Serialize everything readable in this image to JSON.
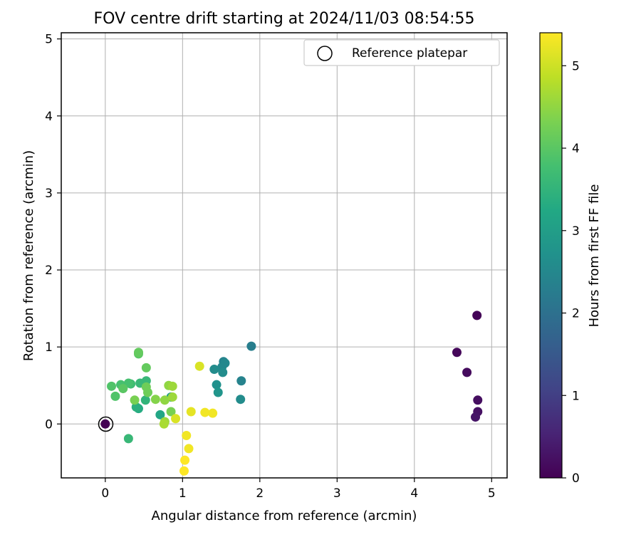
{
  "chart_data": {
    "type": "scatter",
    "title": "FOV centre drift starting at 2024/11/03 08:54:55",
    "xlabel": "Angular distance from reference (arcmin)",
    "ylabel": "Rotation from reference (arcmin)",
    "xlim": [
      -0.57,
      5.2
    ],
    "ylim": [
      -0.7,
      5.08
    ],
    "xticks": [
      0,
      1,
      2,
      3,
      4,
      5
    ],
    "yticks": [
      0,
      1,
      2,
      3,
      4,
      5
    ],
    "grid": true,
    "legend": {
      "position": "top-right",
      "entries": [
        "Reference platepar"
      ]
    },
    "reference_point": {
      "x": 0,
      "y": 0,
      "label": "Reference platepar"
    },
    "colorbar": {
      "label": "Hours from first FF file",
      "colormap": "viridis",
      "range": [
        0,
        5.4
      ],
      "ticks": [
        0,
        1,
        2,
        3,
        4,
        5
      ]
    },
    "points": [
      {
        "x": 4.81,
        "y": 1.41,
        "c": 0.05
      },
      {
        "x": 4.55,
        "y": 0.93,
        "c": 0.1
      },
      {
        "x": 4.68,
        "y": 0.67,
        "c": 0.15
      },
      {
        "x": 4.82,
        "y": 0.31,
        "c": 0.2
      },
      {
        "x": 4.82,
        "y": 0.16,
        "c": 0.25
      },
      {
        "x": 4.79,
        "y": 0.09,
        "c": 0.3
      },
      {
        "x": 1.89,
        "y": 1.01,
        "c": 2.3
      },
      {
        "x": 1.53,
        "y": 0.81,
        "c": 2.4
      },
      {
        "x": 1.55,
        "y": 0.79,
        "c": 2.5
      },
      {
        "x": 1.51,
        "y": 0.74,
        "c": 2.5
      },
      {
        "x": 1.41,
        "y": 0.71,
        "c": 2.6
      },
      {
        "x": 1.52,
        "y": 0.67,
        "c": 2.6
      },
      {
        "x": 1.76,
        "y": 0.56,
        "c": 2.4
      },
      {
        "x": 1.44,
        "y": 0.51,
        "c": 2.7
      },
      {
        "x": 1.46,
        "y": 0.41,
        "c": 2.8
      },
      {
        "x": 1.75,
        "y": 0.32,
        "c": 2.6
      },
      {
        "x": 0.85,
        "y": 0.35,
        "c": 3.0
      },
      {
        "x": 0.71,
        "y": 0.12,
        "c": 3.2
      },
      {
        "x": 0.43,
        "y": 0.2,
        "c": 3.3
      },
      {
        "x": 0.4,
        "y": 0.22,
        "c": 3.4
      },
      {
        "x": 0.3,
        "y": -0.19,
        "c": 3.6
      },
      {
        "x": 0.52,
        "y": 0.31,
        "c": 3.5
      },
      {
        "x": 0.53,
        "y": 0.56,
        "c": 3.6
      },
      {
        "x": 0.45,
        "y": 0.53,
        "c": 3.6
      },
      {
        "x": 0.33,
        "y": 0.52,
        "c": 3.7
      },
      {
        "x": 0.3,
        "y": 0.53,
        "c": 3.8
      },
      {
        "x": 0.2,
        "y": 0.51,
        "c": 3.8
      },
      {
        "x": 0.08,
        "y": 0.49,
        "c": 3.9
      },
      {
        "x": 0.23,
        "y": 0.46,
        "c": 4.0
      },
      {
        "x": 0.13,
        "y": 0.36,
        "c": 3.9
      },
      {
        "x": 0.43,
        "y": 0.91,
        "c": 4.0
      },
      {
        "x": 0.43,
        "y": 0.93,
        "c": 4.1
      },
      {
        "x": 0.53,
        "y": 0.73,
        "c": 4.1
      },
      {
        "x": 0.53,
        "y": 0.48,
        "c": 4.2
      },
      {
        "x": 0.55,
        "y": 0.41,
        "c": 4.2
      },
      {
        "x": 0.38,
        "y": 0.31,
        "c": 4.3
      },
      {
        "x": 0.85,
        "y": 0.16,
        "c": 4.3
      },
      {
        "x": 0.65,
        "y": 0.32,
        "c": 4.4
      },
      {
        "x": 0.77,
        "y": 0.31,
        "c": 4.5
      },
      {
        "x": 0.82,
        "y": 0.5,
        "c": 4.5
      },
      {
        "x": 0.87,
        "y": 0.49,
        "c": 4.6
      },
      {
        "x": 0.87,
        "y": 0.35,
        "c": 4.6
      },
      {
        "x": 0.77,
        "y": 0.03,
        "c": 4.6
      },
      {
        "x": 0.76,
        "y": 0.0,
        "c": 4.7
      },
      {
        "x": 0.91,
        "y": 0.07,
        "c": 5.1
      },
      {
        "x": 1.22,
        "y": 0.75,
        "c": 5.1
      },
      {
        "x": 1.11,
        "y": 0.16,
        "c": 5.2
      },
      {
        "x": 1.29,
        "y": 0.15,
        "c": 5.3
      },
      {
        "x": 1.39,
        "y": 0.14,
        "c": 5.3
      },
      {
        "x": 1.05,
        "y": -0.15,
        "c": 5.3
      },
      {
        "x": 1.08,
        "y": -0.32,
        "c": 5.3
      },
      {
        "x": 1.03,
        "y": -0.47,
        "c": 5.4
      },
      {
        "x": 1.02,
        "y": -0.61,
        "c": 5.4
      }
    ]
  }
}
